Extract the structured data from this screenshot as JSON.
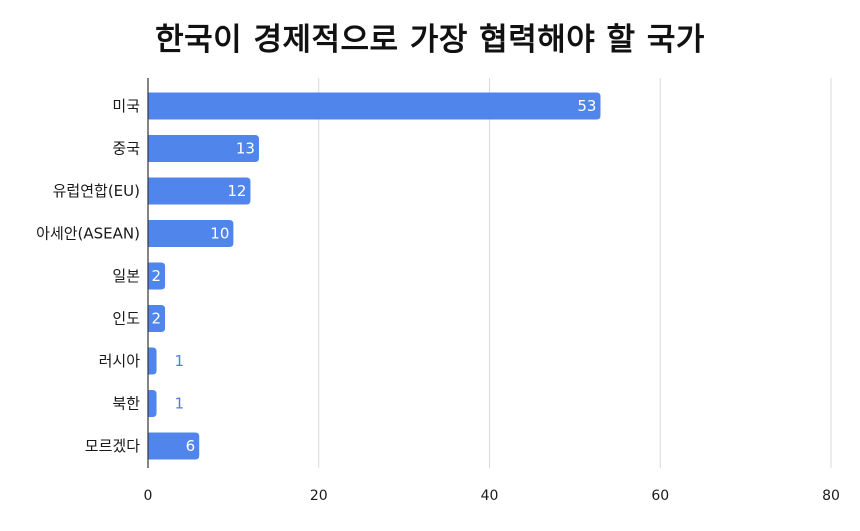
{
  "chart_data": {
    "type": "bar",
    "orientation": "horizontal",
    "title": "한국이 경제적으로 가장 협력해야 할 국가",
    "categories": [
      "미국",
      "중국",
      "유럽연합(EU)",
      "아세안(ASEAN)",
      "일본",
      "인도",
      "러시아",
      "북한",
      "모르겠다"
    ],
    "values": [
      53,
      13,
      12,
      10,
      2,
      2,
      1,
      1,
      6
    ],
    "data_labels": [
      "53",
      "13",
      "12",
      "10",
      "2",
      "2",
      "1",
      "1",
      "6"
    ],
    "xlim": [
      0,
      80
    ],
    "x_ticks": [
      "0",
      "20",
      "40",
      "60",
      "80"
    ],
    "x_tick_values": [
      0,
      20,
      40,
      60,
      80
    ],
    "xlabel": "",
    "ylabel": "",
    "grid": "vertical",
    "legend": "none",
    "colors": {
      "bar": "#5086ec",
      "label_inside": "#ffffff",
      "label_outside": "#4f7fe0",
      "grid": "#d9d9d9",
      "axis": "#333333"
    }
  }
}
